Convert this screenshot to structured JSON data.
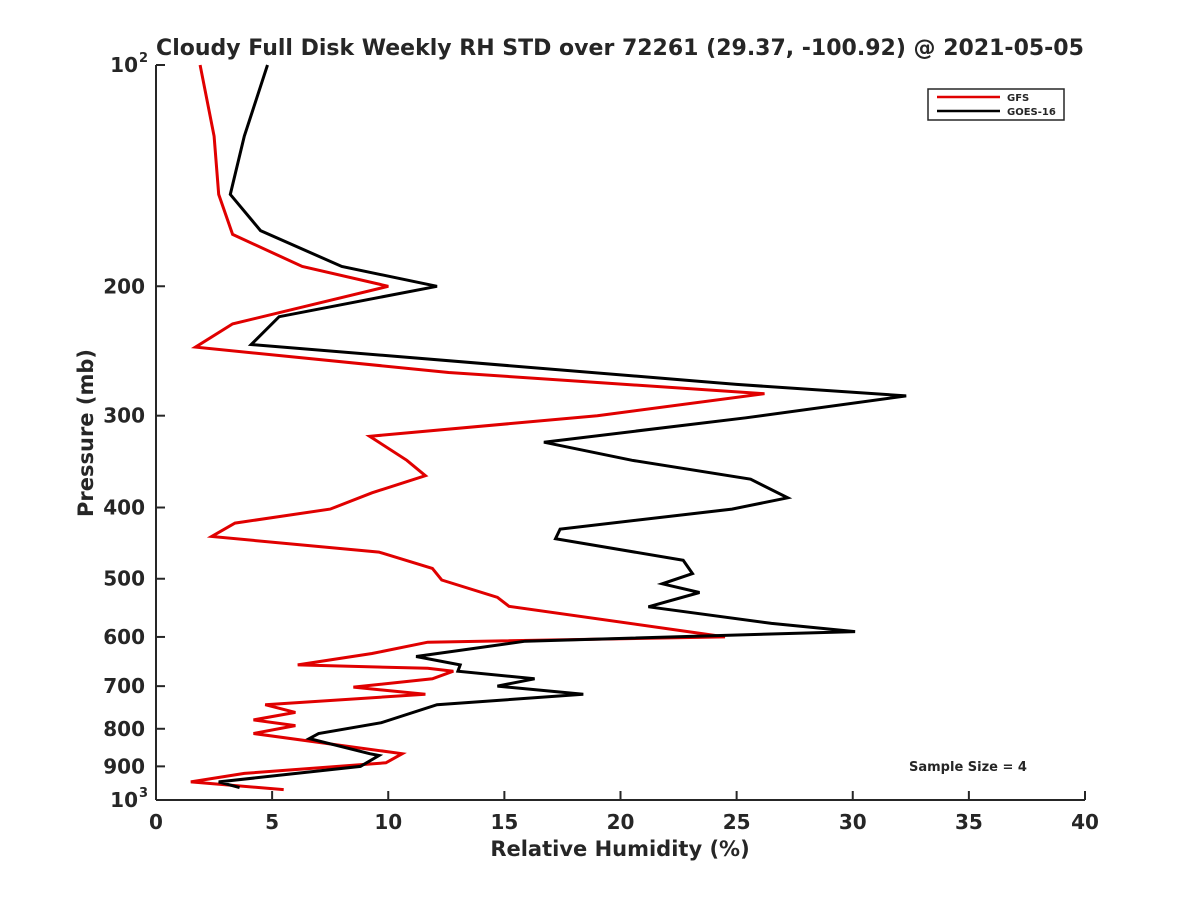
{
  "chart_data": {
    "type": "line",
    "title": "Cloudy Full Disk Weekly RH STD over 72261 (29.37, -100.92) @ 2021-05-05",
    "xlabel": "Relative Humidity (%)",
    "ylabel": "Pressure (mb)",
    "xlim": [
      0,
      40
    ],
    "ylim": [
      100,
      1000
    ],
    "y_scale": "log",
    "y_reversed": true,
    "grid": false,
    "legend_position": "top-right",
    "annotation": "Sample Size = 4",
    "x_ticks": [
      "0",
      "5",
      "10",
      "15",
      "20",
      "25",
      "30",
      "35",
      "40"
    ],
    "y_ticks": [
      {
        "value": 100,
        "base": "10",
        "exp": "2"
      },
      {
        "value": 200,
        "label": "200"
      },
      {
        "value": 300,
        "label": "300"
      },
      {
        "value": 400,
        "label": "400"
      },
      {
        "value": 500,
        "label": "500"
      },
      {
        "value": 600,
        "label": "600"
      },
      {
        "value": 700,
        "label": "700"
      },
      {
        "value": 800,
        "label": "800"
      },
      {
        "value": 900,
        "label": "900"
      },
      {
        "value": 1000,
        "base": "10",
        "exp": "3"
      }
    ],
    "series": [
      {
        "name": "GFS",
        "color": "#e00000",
        "points": [
          [
            1.9,
            100
          ],
          [
            2.5,
            125
          ],
          [
            2.7,
            150
          ],
          [
            3.3,
            170
          ],
          [
            6.3,
            188
          ],
          [
            10.0,
            200
          ],
          [
            3.3,
            225
          ],
          [
            1.7,
            242
          ],
          [
            12.6,
            262
          ],
          [
            26.2,
            280
          ],
          [
            19.0,
            300
          ],
          [
            9.2,
            320
          ],
          [
            10.8,
            345
          ],
          [
            11.6,
            362
          ],
          [
            9.3,
            382
          ],
          [
            7.5,
            402
          ],
          [
            3.4,
            420
          ],
          [
            2.4,
            438
          ],
          [
            9.6,
            460
          ],
          [
            11.9,
            484
          ],
          [
            12.3,
            502
          ],
          [
            14.7,
            530
          ],
          [
            15.2,
            545
          ],
          [
            24.5,
            600
          ],
          [
            11.7,
            610
          ],
          [
            9.3,
            632
          ],
          [
            6.1,
            655
          ],
          [
            11.7,
            662
          ],
          [
            12.8,
            668
          ],
          [
            11.9,
            684
          ],
          [
            8.5,
            702
          ],
          [
            11.6,
            718
          ],
          [
            4.7,
            742
          ],
          [
            6.0,
            760
          ],
          [
            4.2,
            778
          ],
          [
            6.0,
            792
          ],
          [
            4.2,
            812
          ],
          [
            10.6,
            865
          ],
          [
            9.9,
            890
          ],
          [
            3.8,
            920
          ],
          [
            1.5,
            945
          ],
          [
            5.5,
            968
          ]
        ]
      },
      {
        "name": "GOES-16",
        "color": "#000000",
        "points": [
          [
            4.8,
            100
          ],
          [
            3.8,
            125
          ],
          [
            3.2,
            150
          ],
          [
            4.5,
            168
          ],
          [
            8.0,
            188
          ],
          [
            12.1,
            200
          ],
          [
            5.3,
            220
          ],
          [
            4.1,
            240
          ],
          [
            25.0,
            272
          ],
          [
            32.3,
            282
          ],
          [
            25.4,
            302
          ],
          [
            16.7,
            326
          ],
          [
            20.5,
            345
          ],
          [
            25.6,
            366
          ],
          [
            27.2,
            388
          ],
          [
            24.8,
            402
          ],
          [
            17.4,
            428
          ],
          [
            17.2,
            441
          ],
          [
            22.7,
            472
          ],
          [
            23.1,
            492
          ],
          [
            21.8,
            508
          ],
          [
            23.4,
            522
          ],
          [
            21.2,
            546
          ],
          [
            26.5,
            575
          ],
          [
            30.1,
            590
          ],
          [
            15.9,
            608
          ],
          [
            11.2,
            638
          ],
          [
            13.1,
            655
          ],
          [
            13.0,
            668
          ],
          [
            16.3,
            684
          ],
          [
            14.7,
            700
          ],
          [
            18.4,
            718
          ],
          [
            12.1,
            742
          ],
          [
            9.7,
            785
          ],
          [
            7.0,
            812
          ],
          [
            6.6,
            825
          ],
          [
            9.2,
            865
          ],
          [
            9.6,
            870
          ],
          [
            8.8,
            900
          ],
          [
            2.7,
            945
          ],
          [
            3.6,
            962
          ]
        ]
      }
    ]
  }
}
